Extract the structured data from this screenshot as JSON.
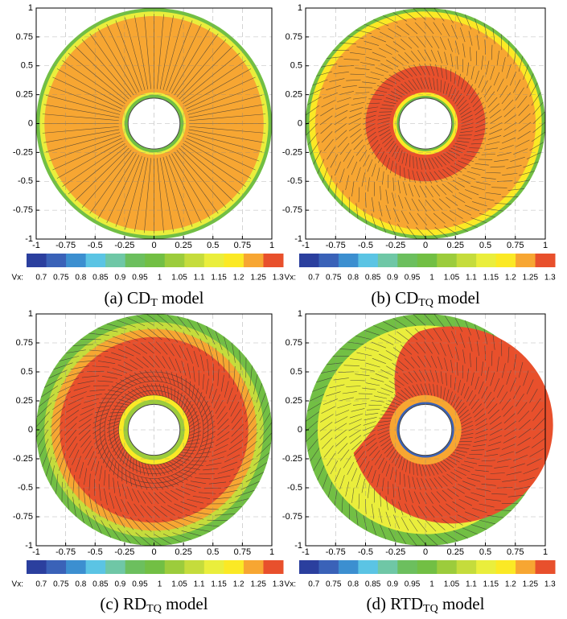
{
  "chart_data": [
    {
      "type": "contour",
      "caption": {
        "pre": "(a) CD",
        "sub": "T",
        "post": " model"
      },
      "xlim": [
        -1,
        1
      ],
      "ylim": [
        -1,
        1
      ],
      "xticks": [
        -1,
        -0.75,
        -0.5,
        -0.25,
        0,
        0.25,
        0.5,
        0.75,
        1
      ],
      "yticks": [
        -1,
        -0.75,
        -0.5,
        -0.25,
        0,
        0.25,
        0.5,
        0.75,
        1
      ],
      "grid": true
    },
    {
      "type": "contour",
      "caption": {
        "pre": "(b) CD",
        "sub": "TQ",
        "post": " model"
      },
      "xlim": [
        -1,
        1
      ],
      "ylim": [
        -1,
        1
      ],
      "xticks": [
        -1,
        -0.75,
        -0.5,
        -0.25,
        0,
        0.25,
        0.5,
        0.75,
        1
      ],
      "yticks": [
        -1,
        -0.75,
        -0.5,
        -0.25,
        0,
        0.25,
        0.5,
        0.75,
        1
      ],
      "grid": true
    },
    {
      "type": "contour",
      "caption": {
        "pre": "(c) RD",
        "sub": "TQ",
        "post": " model"
      },
      "xlim": [
        -1,
        1
      ],
      "ylim": [
        -1,
        1
      ],
      "xticks": [
        -1,
        -0.75,
        -0.5,
        -0.25,
        0,
        0.25,
        0.5,
        0.75,
        1
      ],
      "yticks": [
        -1,
        -0.75,
        -0.5,
        -0.25,
        0,
        0.25,
        0.5,
        0.75,
        1
      ],
      "grid": true
    },
    {
      "type": "contour",
      "caption": {
        "pre": "(d) RTD",
        "sub": "TQ",
        "post": " model"
      },
      "xlim": [
        -1,
        1
      ],
      "ylim": [
        -1,
        1
      ],
      "xticks": [
        -1,
        -0.75,
        -0.5,
        -0.25,
        0,
        0.25,
        0.5,
        0.75,
        1
      ],
      "yticks": [
        -1,
        -0.75,
        -0.5,
        -0.25,
        0,
        0.25,
        0.5,
        0.75,
        1
      ],
      "grid": true
    }
  ],
  "colorbar": {
    "label": "Vx:",
    "levels": [
      0.7,
      0.75,
      0.8,
      0.85,
      0.9,
      0.95,
      1,
      1.05,
      1.1,
      1.15,
      1.2,
      1.25,
      1.3
    ],
    "colors": [
      "#2b3f9e",
      "#3a62b8",
      "#3c8fd0",
      "#5bc4e4",
      "#6fc7a6",
      "#6cbf5e",
      "#72bf44",
      "#9ccc3c",
      "#c5dc3c",
      "#eaee3c",
      "#fbe925",
      "#f7a632",
      "#e8502c"
    ]
  }
}
